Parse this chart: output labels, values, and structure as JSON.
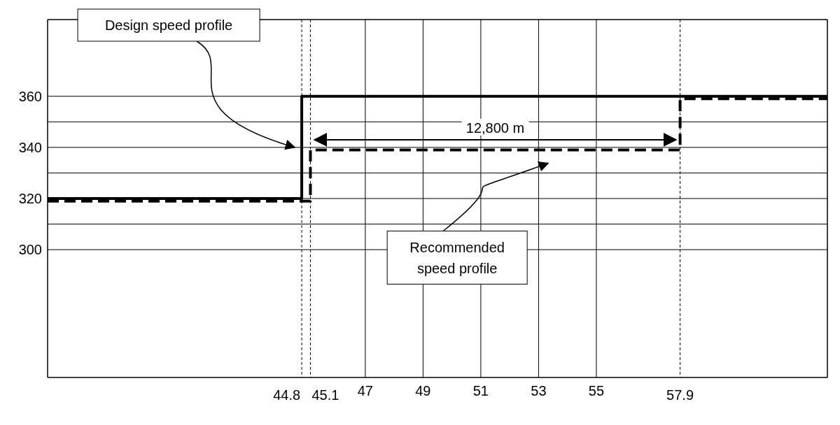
{
  "chart_data": {
    "type": "step",
    "xlim": [
      36,
      63
    ],
    "ylim": [
      250,
      390
    ],
    "xticks": [
      47,
      49,
      51,
      53,
      55
    ],
    "ref_lines": [
      {
        "axis": "x",
        "value": 44.8,
        "label": "44.8",
        "line_style": "dashed",
        "color": "#000000"
      },
      {
        "axis": "x",
        "value": 45.1,
        "label": "45.1",
        "line_style": "dashed",
        "color": "#000000"
      },
      {
        "axis": "x",
        "value": 57.9,
        "label": "57.9",
        "line_style": "dashed",
        "color": "#000000"
      }
    ],
    "yticks": [
      300,
      {
        "value": 310,
        "label": null
      },
      320,
      {
        "value": 330,
        "label": null
      },
      340,
      {
        "value": 350,
        "label": null
      },
      360
    ],
    "grid": true,
    "series": [
      {
        "color": "#000000",
        "line_style": "solid",
        "x": [
          36,
          44.8,
          63
        ],
        "values": [
          320,
          360,
          360
        ]
      },
      {
        "color": "#000000",
        "line_style": "dashed",
        "x": [
          36,
          45.1,
          57.9,
          63
        ],
        "values": [
          319,
          339,
          359,
          359
        ]
      }
    ],
    "annotations": [
      "Design speed profile",
      "Recommended speed profile",
      "12,800 m"
    ]
  }
}
